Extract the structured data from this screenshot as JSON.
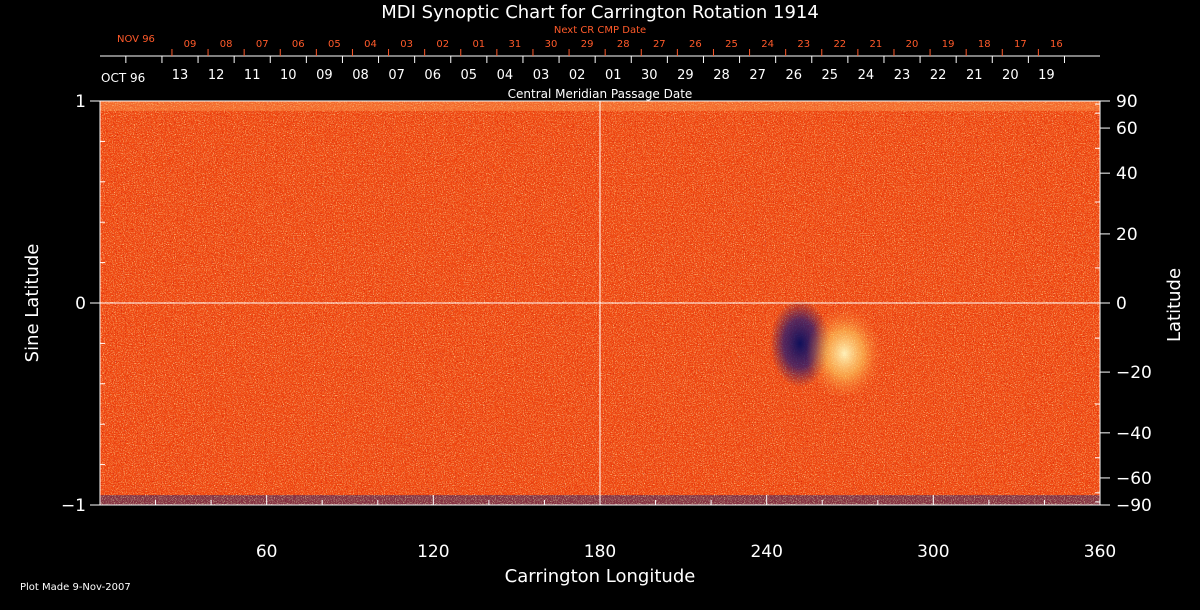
{
  "chart_data": {
    "type": "heatmap",
    "title": "MDI Synoptic Chart for Carrington Rotation 1914",
    "xlabel": "Carrington Longitude",
    "ylabel_left": "Sine Latitude",
    "ylabel_right": "Latitude",
    "xlim": [
      0,
      360
    ],
    "ylim": [
      -1,
      1
    ],
    "x_ticks": [
      60,
      120,
      180,
      240,
      300,
      360
    ],
    "y_ticks_left": [
      {
        "value": 1,
        "label": "1"
      },
      {
        "value": 0,
        "label": "0"
      },
      {
        "value": -1,
        "label": "−1"
      }
    ],
    "y_ticks_right": [
      90,
      60,
      40,
      20,
      0,
      -20,
      -40,
      -60,
      -90
    ],
    "y_tick_labels_right": [
      "90",
      "60",
      "40",
      "20",
      "0",
      "−20",
      "−40",
      "−60",
      "−90"
    ],
    "top_axis": {
      "title": "Central Meridian Passage Date",
      "start_label": "OCT 96",
      "labels": [
        "13",
        "12",
        "11",
        "10",
        "09",
        "08",
        "07",
        "06",
        "05",
        "04",
        "03",
        "02",
        "01",
        "30",
        "29",
        "28",
        "27",
        "26",
        "25",
        "24",
        "23",
        "22",
        "21",
        "20",
        "19"
      ]
    },
    "next_cr_axis": {
      "title": "Next CR CMP Date",
      "start_label": "NOV 96",
      "labels": [
        "09",
        "08",
        "07",
        "06",
        "05",
        "04",
        "03",
        "02",
        "01",
        "31",
        "30",
        "29",
        "28",
        "27",
        "26",
        "25",
        "24",
        "23",
        "22",
        "21",
        "20",
        "19",
        "18",
        "17",
        "16"
      ]
    },
    "gridlines": {
      "x": [
        180
      ],
      "y": [
        0
      ]
    },
    "colors": {
      "background": "#000000",
      "field": "#f04a12",
      "positive": "#ffe070",
      "negative": "#1a1a7a",
      "accent_text": "#ff5a2a"
    },
    "features": [
      {
        "name": "negative polarity region",
        "lon": 252,
        "sinlat": -0.2
      },
      {
        "name": "positive polarity region",
        "lon": 268,
        "sinlat": -0.25
      }
    ],
    "footer": "Plot Made  9-Nov-2007"
  }
}
